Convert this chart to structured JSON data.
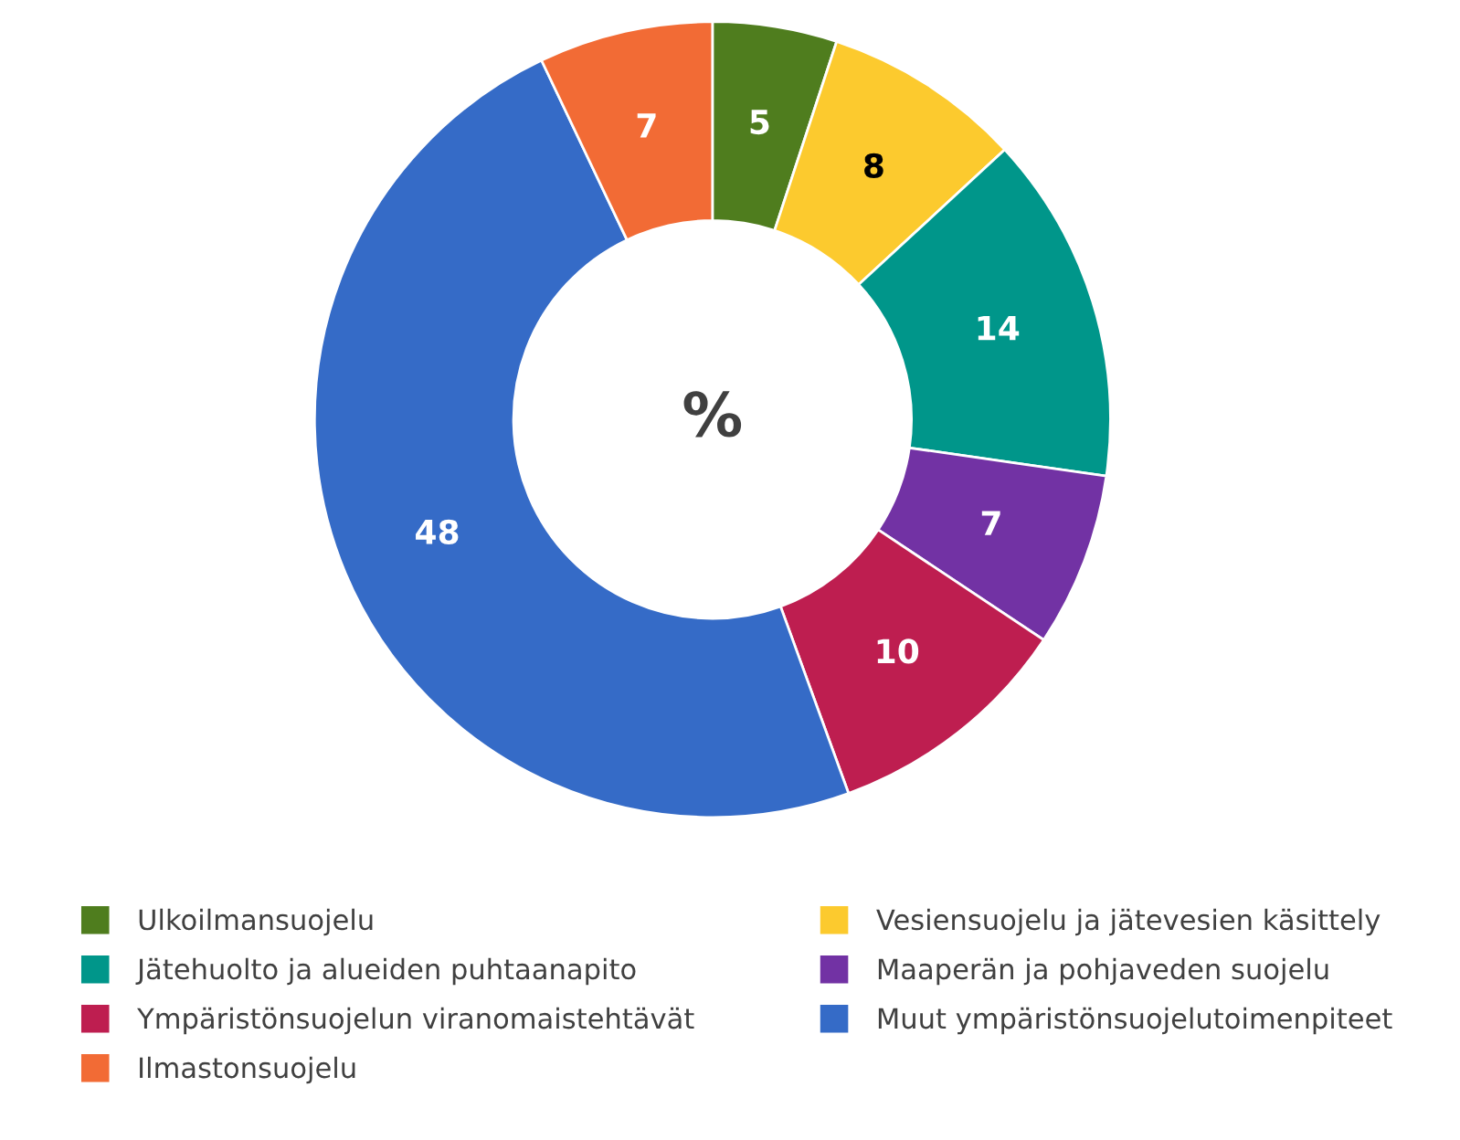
{
  "chart_data": {
    "type": "donut",
    "categories": [
      "Ulkoilmansuojelu",
      "Vesiensuojelu ja jätevesien käsittely",
      "Jätehuolto ja alueiden puhtaanapito",
      "Maaperän ja pohjaveden suojelu",
      "Ympäristönsuojelun viranomaistehtävät",
      "Muut ympäristönsuojelutoimenpiteet",
      "Ilmastonsuojelu"
    ],
    "values": [
      5,
      8,
      14,
      7,
      10,
      48,
      7
    ],
    "colors": [
      "#4f7d1e",
      "#fcca2e",
      "#00968a",
      "#7232a4",
      "#be1e50",
      "#356bc7",
      "#f26b35"
    ],
    "data_labels": true,
    "annotations": [
      "%"
    ],
    "legend": "bottom"
  }
}
